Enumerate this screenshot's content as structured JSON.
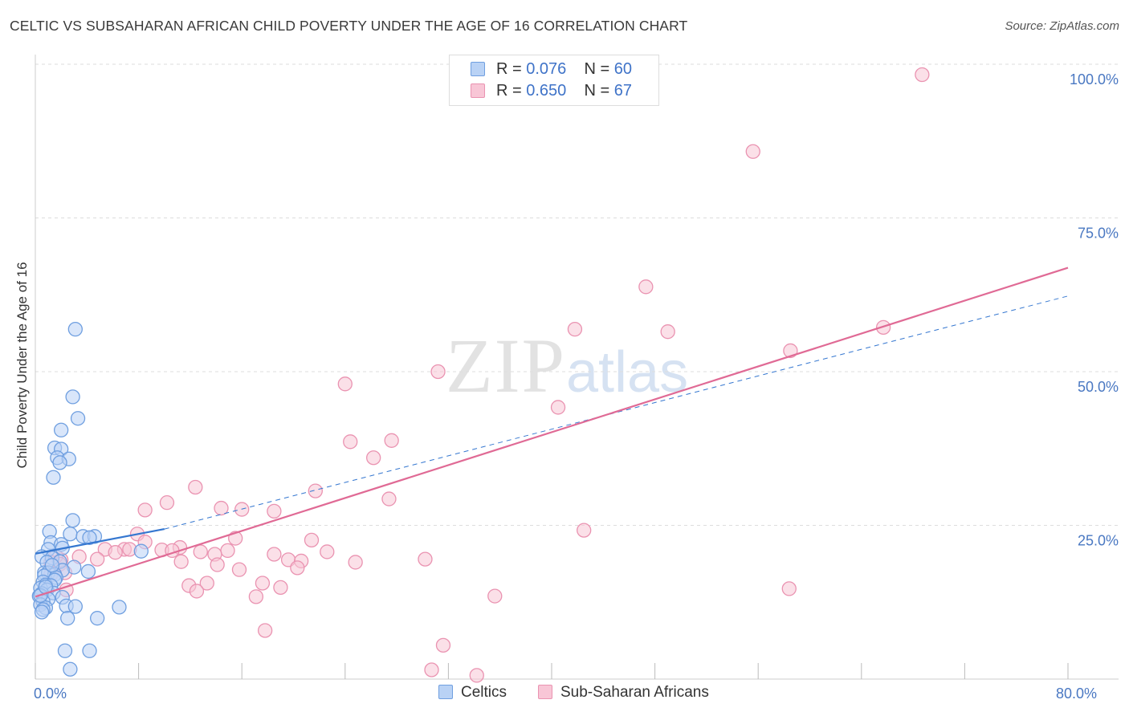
{
  "header": {
    "title": "CELTIC VS SUBSAHARAN AFRICAN CHILD POVERTY UNDER THE AGE OF 16 CORRELATION CHART",
    "source": "Source: ZipAtlas.com"
  },
  "watermark": {
    "zip": "ZIP",
    "atlas": "atlas"
  },
  "legend": {
    "celtics": {
      "r_label": "R = ",
      "r_value": "0.076",
      "n_label": "N = ",
      "n_value": "60"
    },
    "africans": {
      "r_label": "R = ",
      "r_value": "0.650",
      "n_label": "N = ",
      "n_value": "67"
    }
  },
  "colors": {
    "celtics_fill": "#b9d2f5",
    "celtics_stroke": "#6f9fe0",
    "celtics_line": "#3577d0",
    "africans_fill": "#f8c6d6",
    "africans_stroke": "#ea93b1",
    "africans_line": "#e06a95",
    "grid": "#dddddd",
    "tick_label": "#4a78c2"
  },
  "chart_data": {
    "type": "scatter",
    "title": "CELTIC VS SUBSAHARAN AFRICAN CHILD POVERTY UNDER THE AGE OF 16 CORRELATION CHART",
    "xlabel": "",
    "ylabel": "Child Poverty Under the Age of 16",
    "xlim": [
      0,
      80
    ],
    "ylim": [
      0,
      100
    ],
    "x_ticks": [
      0,
      8,
      16,
      24,
      32,
      40,
      48,
      56,
      64,
      72,
      80
    ],
    "x_tick_labels": [
      {
        "x": 0,
        "label": "0.0%"
      },
      {
        "x": 80,
        "label": "80.0%"
      }
    ],
    "y_ticks": [
      {
        "y": 25,
        "label": "25.0%"
      },
      {
        "y": 50,
        "label": "50.0%"
      },
      {
        "y": 75,
        "label": "75.0%"
      },
      {
        "y": 100,
        "label": "100.0%"
      }
    ],
    "grid": true,
    "legend_position": "top-center",
    "series": [
      {
        "name": "Celtics",
        "color": "#6f9fe0",
        "trend": {
          "x1": 0,
          "y1": 20.4,
          "x2": 10.0,
          "y2": 24.4,
          "dashed_to_x": 80,
          "dashed_to_y": 62.3
        },
        "points": [
          [
            3.1,
            56.9
          ],
          [
            2.9,
            45.9
          ],
          [
            3.3,
            42.4
          ],
          [
            2.0,
            40.5
          ],
          [
            1.5,
            37.6
          ],
          [
            2.0,
            37.4
          ],
          [
            1.7,
            36.0
          ],
          [
            2.6,
            35.8
          ],
          [
            1.9,
            35.2
          ],
          [
            1.4,
            32.8
          ],
          [
            2.9,
            25.8
          ],
          [
            1.1,
            24.0
          ],
          [
            2.7,
            23.6
          ],
          [
            3.7,
            23.2
          ],
          [
            4.6,
            23.2
          ],
          [
            4.2,
            23.0
          ],
          [
            1.2,
            22.2
          ],
          [
            2.0,
            21.9
          ],
          [
            2.1,
            21.3
          ],
          [
            1.0,
            21.1
          ],
          [
            8.2,
            20.8
          ],
          [
            0.5,
            19.9
          ],
          [
            1.3,
            19.7
          ],
          [
            1.9,
            19.1
          ],
          [
            0.9,
            19.0
          ],
          [
            3.0,
            18.2
          ],
          [
            2.1,
            17.7
          ],
          [
            4.1,
            17.5
          ],
          [
            0.7,
            17.3
          ],
          [
            1.0,
            17.3
          ],
          [
            1.5,
            17.0
          ],
          [
            0.7,
            16.8
          ],
          [
            1.6,
            16.5
          ],
          [
            1.5,
            16.1
          ],
          [
            0.6,
            15.8
          ],
          [
            0.8,
            15.3
          ],
          [
            1.2,
            15.2
          ],
          [
            0.4,
            14.8
          ],
          [
            0.9,
            14.5
          ],
          [
            1.4,
            14.0
          ],
          [
            0.5,
            13.9
          ],
          [
            0.3,
            13.5
          ],
          [
            2.1,
            13.3
          ],
          [
            1.0,
            13.0
          ],
          [
            0.6,
            12.6
          ],
          [
            0.4,
            12.1
          ],
          [
            2.4,
            11.9
          ],
          [
            3.1,
            11.8
          ],
          [
            0.8,
            11.6
          ],
          [
            6.5,
            11.7
          ],
          [
            0.6,
            11.3
          ],
          [
            0.5,
            10.9
          ],
          [
            2.5,
            9.9
          ],
          [
            4.8,
            9.9
          ],
          [
            0.4,
            13.6
          ],
          [
            2.3,
            4.6
          ],
          [
            4.2,
            4.6
          ],
          [
            2.7,
            1.6
          ],
          [
            1.3,
            18.5
          ],
          [
            0.8,
            15.0
          ]
        ]
      },
      {
        "name": "Sub-Saharan Africans",
        "color": "#ea93b1",
        "trend": {
          "x1": 0,
          "y1": 13.4,
          "x2": 80,
          "y2": 66.9
        },
        "points": [
          [
            68.7,
            98.3
          ],
          [
            55.6,
            85.8
          ],
          [
            47.3,
            63.8
          ],
          [
            41.8,
            56.9
          ],
          [
            49.0,
            56.5
          ],
          [
            58.5,
            53.4
          ],
          [
            65.7,
            57.2
          ],
          [
            24.0,
            48.0
          ],
          [
            31.2,
            50.0
          ],
          [
            40.5,
            44.2
          ],
          [
            24.4,
            38.6
          ],
          [
            27.6,
            38.8
          ],
          [
            26.2,
            36.0
          ],
          [
            12.4,
            31.2
          ],
          [
            21.7,
            30.6
          ],
          [
            27.4,
            29.3
          ],
          [
            10.2,
            28.7
          ],
          [
            14.4,
            27.8
          ],
          [
            16.0,
            27.6
          ],
          [
            8.5,
            27.5
          ],
          [
            18.5,
            27.3
          ],
          [
            42.5,
            24.2
          ],
          [
            7.9,
            23.6
          ],
          [
            15.5,
            22.9
          ],
          [
            8.5,
            22.3
          ],
          [
            21.4,
            22.6
          ],
          [
            11.2,
            21.4
          ],
          [
            5.4,
            21.1
          ],
          [
            6.9,
            21.1
          ],
          [
            7.3,
            21.1
          ],
          [
            9.8,
            21.0
          ],
          [
            10.6,
            20.9
          ],
          [
            14.9,
            20.9
          ],
          [
            12.8,
            20.7
          ],
          [
            18.5,
            20.3
          ],
          [
            22.6,
            20.7
          ],
          [
            13.9,
            20.3
          ],
          [
            6.2,
            20.6
          ],
          [
            3.4,
            19.9
          ],
          [
            2.0,
            19.4
          ],
          [
            1.6,
            20.0
          ],
          [
            4.8,
            19.5
          ],
          [
            1.2,
            19.0
          ],
          [
            11.3,
            19.1
          ],
          [
            19.6,
            19.4
          ],
          [
            20.6,
            19.2
          ],
          [
            24.8,
            19.0
          ],
          [
            30.2,
            19.5
          ],
          [
            1.9,
            18.7
          ],
          [
            14.1,
            18.6
          ],
          [
            20.3,
            18.1
          ],
          [
            15.8,
            17.8
          ],
          [
            2.3,
            17.3
          ],
          [
            1.2,
            17.0
          ],
          [
            13.3,
            15.6
          ],
          [
            11.9,
            15.2
          ],
          [
            17.6,
            15.6
          ],
          [
            19.0,
            14.9
          ],
          [
            12.5,
            14.3
          ],
          [
            58.4,
            14.7
          ],
          [
            35.6,
            13.5
          ],
          [
            17.1,
            13.4
          ],
          [
            17.8,
            7.9
          ],
          [
            31.6,
            5.5
          ],
          [
            30.7,
            1.5
          ],
          [
            34.2,
            0.6
          ],
          [
            2.4,
            14.5
          ]
        ]
      }
    ]
  },
  "bottom_legend": {
    "celtics": "Celtics",
    "africans": "Sub-Saharan Africans"
  }
}
